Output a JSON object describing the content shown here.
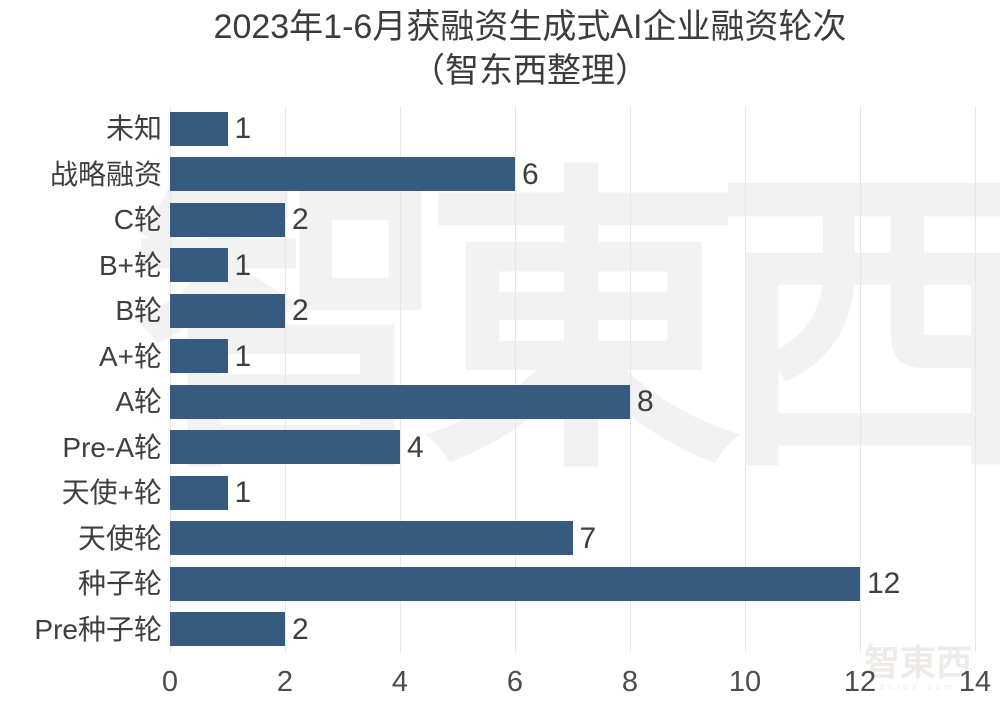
{
  "title": {
    "line1": "2023年1-6月获融资生成式AI企业融资轮次",
    "line2": "（智东西整理）"
  },
  "watermark": {
    "center_text": "智東西",
    "corner_text": "智東西",
    "corner_subtext": "zhidx.com"
  },
  "colors": {
    "bar": "#375B7F",
    "gridline": "#E7E7E7",
    "title_text": "#3C3C3C",
    "label_text": "#3F3F3F",
    "tick_text": "#4C4C4C",
    "watermark_center": "#F2F2F2",
    "watermark_corner": "#EFEBE7",
    "background": "#FFFFFF"
  },
  "chart_data": {
    "type": "bar",
    "orientation": "horizontal",
    "title": "2023年1-6月获融资生成式AI企业融资轮次（智东西整理）",
    "categories": [
      "未知",
      "战略融资",
      "C轮",
      "B+轮",
      "B轮",
      "A+轮",
      "A轮",
      "Pre-A轮",
      "天使+轮",
      "天使轮",
      "种子轮",
      "Pre种子轮"
    ],
    "values": [
      1,
      6,
      2,
      1,
      2,
      1,
      8,
      4,
      1,
      7,
      12,
      2
    ],
    "xlabel": "",
    "ylabel": "",
    "xlim": [
      0,
      14
    ],
    "x_ticks": [
      0,
      2,
      4,
      6,
      8,
      10,
      12,
      14
    ],
    "grid": "vertical-only",
    "legend": "none",
    "bar_color": "#375B7F",
    "value_labels_shown": true
  }
}
